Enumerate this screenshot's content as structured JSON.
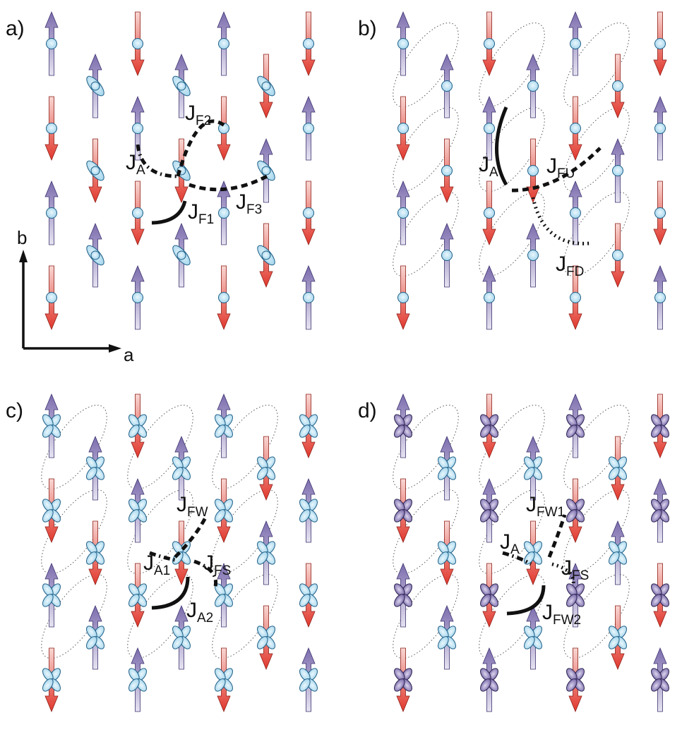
{
  "figure": {
    "panels": [
      {
        "id": "a",
        "label": "a)",
        "orbital": "circle",
        "dimers": false,
        "couplings": [
          {
            "main": "J",
            "sub": "F2"
          },
          {
            "main": "J",
            "sub": "A"
          },
          {
            "main": "J",
            "sub": "F1"
          },
          {
            "main": "J",
            "sub": "F3"
          }
        ]
      },
      {
        "id": "b",
        "label": "b)",
        "orbital": "circle",
        "dimers": true,
        "couplings": [
          {
            "main": "J",
            "sub": "A"
          },
          {
            "main": "J",
            "sub": "FU"
          },
          {
            "main": "J",
            "sub": "FD"
          }
        ]
      },
      {
        "id": "c",
        "label": "c)",
        "orbital": "clover",
        "dimers": true,
        "couplings": [
          {
            "main": "J",
            "sub": "FW"
          },
          {
            "main": "J",
            "sub": "A1"
          },
          {
            "main": "J",
            "sub": "A2"
          },
          {
            "main": "J",
            "sub": "FS"
          }
        ]
      },
      {
        "id": "d",
        "label": "d)",
        "orbital": "clover-two-color",
        "dimers": true,
        "couplings": [
          {
            "main": "J",
            "sub": "FW1"
          },
          {
            "main": "J",
            "sub": "A"
          },
          {
            "main": "J",
            "sub": "FW2"
          },
          {
            "main": "J",
            "sub": "FS"
          }
        ]
      }
    ],
    "axes": {
      "a": "a",
      "b": "b"
    },
    "colors": {
      "spin_up": "#8c80b8",
      "spin_down": "#e8453c",
      "orbital_fill": "#bfe3f3",
      "orbital_dark": "#6f5fa3",
      "line": "#111111"
    }
  }
}
